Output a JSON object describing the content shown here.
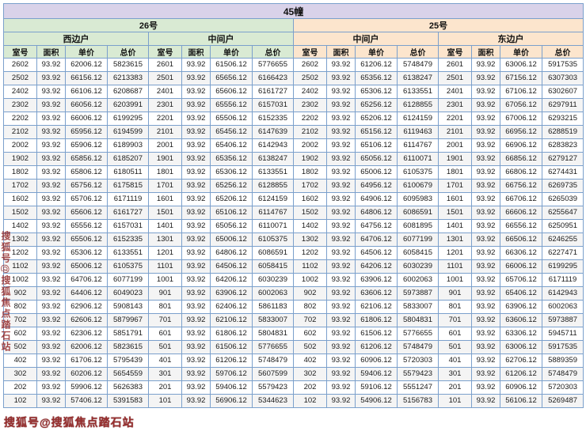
{
  "chart_data": {
    "type": "table",
    "title": "45幢",
    "buildings": [
      {
        "name": "26号",
        "units": [
          "西边户",
          "中间户"
        ]
      },
      {
        "name": "25号",
        "units": [
          "中间户",
          "东边户"
        ]
      }
    ],
    "column_headers": [
      "室号",
      "面积",
      "单价",
      "总价"
    ],
    "rows": [
      [
        "2602",
        "93.92",
        "62006.12",
        "5823615",
        "2601",
        "93.92",
        "61506.12",
        "5776655",
        "2602",
        "93.92",
        "61206.12",
        "5748479",
        "2601",
        "93.92",
        "63006.12",
        "5917535"
      ],
      [
        "2502",
        "93.92",
        "66156.12",
        "6213383",
        "2501",
        "93.92",
        "65656.12",
        "6166423",
        "2502",
        "93.92",
        "65356.12",
        "6138247",
        "2501",
        "93.92",
        "67156.12",
        "6307303"
      ],
      [
        "2402",
        "93.92",
        "66106.12",
        "6208687",
        "2401",
        "93.92",
        "65606.12",
        "6161727",
        "2402",
        "93.92",
        "65306.12",
        "6133551",
        "2401",
        "93.92",
        "67106.12",
        "6302607"
      ],
      [
        "2302",
        "93.92",
        "66056.12",
        "6203991",
        "2301",
        "93.92",
        "65556.12",
        "6157031",
        "2302",
        "93.92",
        "65256.12",
        "6128855",
        "2301",
        "93.92",
        "67056.12",
        "6297911"
      ],
      [
        "2202",
        "93.92",
        "66006.12",
        "6199295",
        "2201",
        "93.92",
        "65506.12",
        "6152335",
        "2202",
        "93.92",
        "65206.12",
        "6124159",
        "2201",
        "93.92",
        "67006.12",
        "6293215"
      ],
      [
        "2102",
        "93.92",
        "65956.12",
        "6194599",
        "2101",
        "93.92",
        "65456.12",
        "6147639",
        "2102",
        "93.92",
        "65156.12",
        "6119463",
        "2101",
        "93.92",
        "66956.12",
        "6288519"
      ],
      [
        "2002",
        "93.92",
        "65906.12",
        "6189903",
        "2001",
        "93.92",
        "65406.12",
        "6142943",
        "2002",
        "93.92",
        "65106.12",
        "6114767",
        "2001",
        "93.92",
        "66906.12",
        "6283823"
      ],
      [
        "1902",
        "93.92",
        "65856.12",
        "6185207",
        "1901",
        "93.92",
        "65356.12",
        "6138247",
        "1902",
        "93.92",
        "65056.12",
        "6110071",
        "1901",
        "93.92",
        "66856.12",
        "6279127"
      ],
      [
        "1802",
        "93.92",
        "65806.12",
        "6180511",
        "1801",
        "93.92",
        "65306.12",
        "6133551",
        "1802",
        "93.92",
        "65006.12",
        "6105375",
        "1801",
        "93.92",
        "66806.12",
        "6274431"
      ],
      [
        "1702",
        "93.92",
        "65756.12",
        "6175815",
        "1701",
        "93.92",
        "65256.12",
        "6128855",
        "1702",
        "93.92",
        "64956.12",
        "6100679",
        "1701",
        "93.92",
        "66756.12",
        "6269735"
      ],
      [
        "1602",
        "93.92",
        "65706.12",
        "6171119",
        "1601",
        "93.92",
        "65206.12",
        "6124159",
        "1602",
        "93.92",
        "64906.12",
        "6095983",
        "1601",
        "93.92",
        "66706.12",
        "6265039"
      ],
      [
        "1502",
        "93.92",
        "65606.12",
        "6161727",
        "1501",
        "93.92",
        "65106.12",
        "6114767",
        "1502",
        "93.92",
        "64806.12",
        "6086591",
        "1501",
        "93.92",
        "66606.12",
        "6255647"
      ],
      [
        "1402",
        "93.92",
        "65556.12",
        "6157031",
        "1401",
        "93.92",
        "65056.12",
        "6110071",
        "1402",
        "93.92",
        "64756.12",
        "6081895",
        "1401",
        "93.92",
        "66556.12",
        "6250951"
      ],
      [
        "1302",
        "93.92",
        "65506.12",
        "6152335",
        "1301",
        "93.92",
        "65006.12",
        "6105375",
        "1302",
        "93.92",
        "64706.12",
        "6077199",
        "1301",
        "93.92",
        "66506.12",
        "6246255"
      ],
      [
        "1202",
        "93.92",
        "65306.12",
        "6133551",
        "1201",
        "93.92",
        "64806.12",
        "6086591",
        "1202",
        "93.92",
        "64506.12",
        "6058415",
        "1201",
        "93.92",
        "66306.12",
        "6227471"
      ],
      [
        "1102",
        "93.92",
        "65006.12",
        "6105375",
        "1101",
        "93.92",
        "64506.12",
        "6058415",
        "1102",
        "93.92",
        "64206.12",
        "6030239",
        "1101",
        "93.92",
        "66006.12",
        "6199295"
      ],
      [
        "1002",
        "93.92",
        "64706.12",
        "6077199",
        "1001",
        "93.92",
        "64206.12",
        "6030239",
        "1002",
        "93.92",
        "63906.12",
        "6002063",
        "1001",
        "93.92",
        "65706.12",
        "6171119"
      ],
      [
        "902",
        "93.92",
        "64406.12",
        "6049023",
        "901",
        "93.92",
        "63906.12",
        "6002063",
        "902",
        "93.92",
        "63606.12",
        "5973887",
        "901",
        "93.92",
        "65406.12",
        "6142943"
      ],
      [
        "802",
        "93.92",
        "62906.12",
        "5908143",
        "801",
        "93.92",
        "62406.12",
        "5861183",
        "802",
        "93.92",
        "62106.12",
        "5833007",
        "801",
        "93.92",
        "63906.12",
        "6002063"
      ],
      [
        "702",
        "93.92",
        "62606.12",
        "5879967",
        "701",
        "93.92",
        "62106.12",
        "5833007",
        "702",
        "93.92",
        "61806.12",
        "5804831",
        "701",
        "93.92",
        "63606.12",
        "5973887"
      ],
      [
        "602",
        "93.92",
        "62306.12",
        "5851791",
        "601",
        "93.92",
        "61806.12",
        "5804831",
        "602",
        "93.92",
        "61506.12",
        "5776655",
        "601",
        "93.92",
        "63306.12",
        "5945711"
      ],
      [
        "502",
        "93.92",
        "62006.12",
        "5823615",
        "501",
        "93.92",
        "61506.12",
        "5776655",
        "502",
        "93.92",
        "61206.12",
        "5748479",
        "501",
        "93.92",
        "63006.12",
        "5917535"
      ],
      [
        "402",
        "93.92",
        "61706.12",
        "5795439",
        "401",
        "93.92",
        "61206.12",
        "5748479",
        "402",
        "93.92",
        "60906.12",
        "5720303",
        "401",
        "93.92",
        "62706.12",
        "5889359"
      ],
      [
        "302",
        "93.92",
        "60206.12",
        "5654559",
        "301",
        "93.92",
        "59706.12",
        "5607599",
        "302",
        "93.92",
        "59406.12",
        "5579423",
        "301",
        "93.92",
        "61206.12",
        "5748479"
      ],
      [
        "202",
        "93.92",
        "59906.12",
        "5626383",
        "201",
        "93.92",
        "59406.12",
        "5579423",
        "202",
        "93.92",
        "59106.12",
        "5551247",
        "201",
        "93.92",
        "60906.12",
        "5720303"
      ],
      [
        "102",
        "93.92",
        "57406.12",
        "5391583",
        "101",
        "93.92",
        "56906.12",
        "5344623",
        "102",
        "93.92",
        "54906.12",
        "5156783",
        "101",
        "93.92",
        "56106.12",
        "5269487"
      ]
    ]
  },
  "watermarks": {
    "bottom": "搜狐号@搜狐焦点踏石站",
    "left": "搜狐号@搜狐焦点踏石站"
  },
  "colors": {
    "title_bg": "#d9d2e9",
    "building_26_bg": "#d9ead3",
    "building_25_bg": "#fce5cd",
    "grid_border": "#7ba0cc",
    "watermark_red": "#8f1d1d"
  }
}
